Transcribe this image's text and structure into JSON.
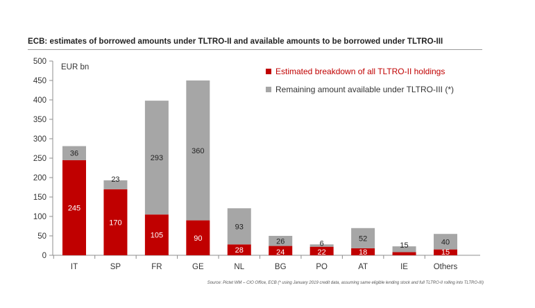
{
  "chart_data": {
    "type": "bar",
    "stacked": true,
    "title": "ECB: estimates of borrowed amounts under TLTRO-II and available amounts to be borrowed under TLTRO-III",
    "ylabel": "EUR bn",
    "xlabel": "",
    "ylim": [
      0,
      500
    ],
    "yticks": [
      0,
      50,
      100,
      150,
      200,
      250,
      300,
      350,
      400,
      450,
      500
    ],
    "categories": [
      "IT",
      "SP",
      "FR",
      "GE",
      "NL",
      "BG",
      "PO",
      "AT",
      "IE",
      "Others"
    ],
    "series": [
      {
        "name": "Estimated breakdown of all TLTRO-II holdings",
        "color": "#c00000",
        "values": [
          245,
          170,
          105,
          90,
          28,
          24,
          22,
          18,
          8,
          15
        ],
        "labels": [
          "245",
          "170",
          "105",
          "90",
          "28",
          "24",
          "22",
          "18",
          "",
          "15"
        ]
      },
      {
        "name": "Remaining amount available under TLTRO-III (*)",
        "color": "#a6a6a6",
        "values": [
          36,
          23,
          293,
          360,
          93,
          26,
          6,
          52,
          15,
          40
        ],
        "labels": [
          "36",
          "23",
          "293",
          "360",
          "93",
          "26",
          "6",
          "52",
          "15",
          "40"
        ]
      }
    ],
    "legend_position": "top-right",
    "grid": false
  },
  "source": "Source: Pictet WM – CIO Office, ECB (* using January 2019 credit data, assuming same eligible lending stock and full TLTRO-II rolling into TLTRO-III)"
}
